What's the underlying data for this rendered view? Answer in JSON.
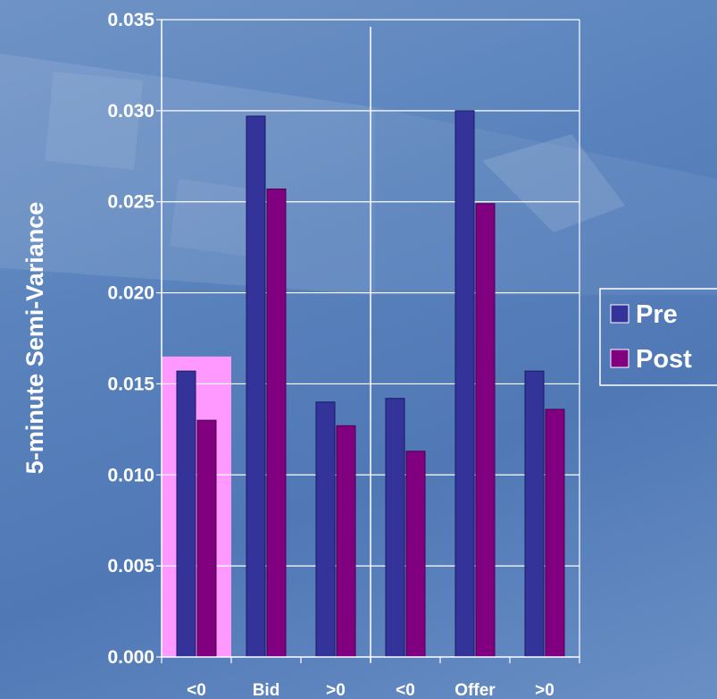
{
  "chart_data": {
    "type": "bar",
    "ylabel": "5-minute Semi-Variance",
    "ylim": [
      0,
      0.035
    ],
    "yticks": [
      "0.000",
      "0.005",
      "0.010",
      "0.015",
      "0.020",
      "0.025",
      "0.030",
      "0.035"
    ],
    "categories": [
      "<0",
      "Bid",
      ">0",
      "<0",
      "Offer",
      ">0"
    ],
    "series": [
      {
        "name": "Pre",
        "color": "#333399",
        "values": [
          0.0157,
          0.0297,
          0.014,
          0.0142,
          0.03,
          0.0157
        ]
      },
      {
        "name": "Post",
        "color": "#800080",
        "values": [
          0.013,
          0.0257,
          0.0127,
          0.0113,
          0.0249,
          0.0136
        ]
      }
    ],
    "highlight": {
      "category_index": 0,
      "color": "#ff99ff",
      "value": 0.0165
    },
    "grid": true,
    "legend": "right"
  }
}
